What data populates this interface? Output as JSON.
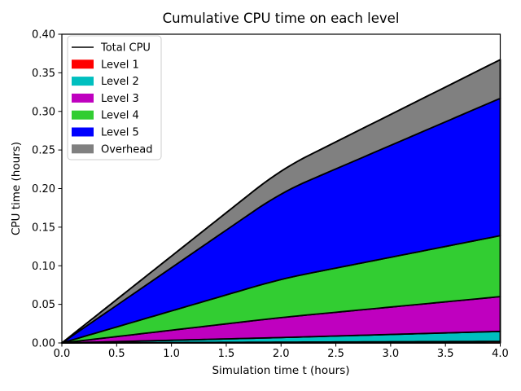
{
  "chart_data": {
    "type": "area",
    "title": "Cumulative CPU time on each level",
    "xlabel": "Simulation time t (hours)",
    "ylabel": "CPU time (hours)",
    "xlim": [
      0,
      4
    ],
    "ylim": [
      0,
      0.4
    ],
    "grid": false,
    "background_color": "#ffffff",
    "edge_color": "#000000",
    "xticks": {
      "values": [
        0.0,
        0.5,
        1.0,
        1.5,
        2.0,
        2.5,
        3.0,
        3.5,
        4.0
      ],
      "labels": [
        "0.0",
        "0.5",
        "1.0",
        "1.5",
        "2.0",
        "2.5",
        "3.0",
        "3.5",
        "4.0"
      ]
    },
    "yticks": {
      "values": [
        0.0,
        0.05,
        0.1,
        0.15,
        0.2,
        0.25,
        0.3,
        0.35,
        0.4
      ],
      "labels": [
        "0.00",
        "0.05",
        "0.10",
        "0.15",
        "0.20",
        "0.25",
        "0.30",
        "0.35",
        "0.40"
      ]
    },
    "x": [
      0,
      2,
      4
    ],
    "stack_series": [
      {
        "name": "Level 1",
        "color": "#ff0000",
        "values": [
          0,
          0.001,
          0.002
        ],
        "cumulative_top": [
          0,
          0.001,
          0.002
        ]
      },
      {
        "name": "Level 2",
        "color": "#00bfbf",
        "values": [
          0,
          0.006,
          0.013
        ],
        "cumulative_top": [
          0,
          0.007,
          0.015
        ]
      },
      {
        "name": "Level 3",
        "color": "#bf00bf",
        "values": [
          0,
          0.026,
          0.045
        ],
        "cumulative_top": [
          0,
          0.033,
          0.06
        ]
      },
      {
        "name": "Level 4",
        "color": "#32cd32",
        "values": [
          0,
          0.05,
          0.079
        ],
        "cumulative_top": [
          0,
          0.083,
          0.139
        ]
      },
      {
        "name": "Level 5",
        "color": "#0000ff",
        "values": [
          0,
          0.112,
          0.178
        ],
        "cumulative_top": [
          0,
          0.195,
          0.317
        ]
      },
      {
        "name": "Overhead",
        "color": "#808080",
        "values": [
          0,
          0.03,
          0.05
        ],
        "cumulative_top": [
          0,
          0.225,
          0.367
        ]
      }
    ],
    "total_line": {
      "name": "Total CPU",
      "color": "#000000",
      "values": [
        0,
        0.225,
        0.367
      ]
    },
    "legend": {
      "position": "upper left",
      "entries": [
        {
          "label": "Total CPU",
          "handle": "line",
          "color": "#000000"
        },
        {
          "label": "Level 1",
          "handle": "patch",
          "color": "#ff0000"
        },
        {
          "label": "Level 2",
          "handle": "patch",
          "color": "#00bfbf"
        },
        {
          "label": "Level 3",
          "handle": "patch",
          "color": "#bf00bf"
        },
        {
          "label": "Level 4",
          "handle": "patch",
          "color": "#32cd32"
        },
        {
          "label": "Level 5",
          "handle": "patch",
          "color": "#0000ff"
        },
        {
          "label": "Overhead",
          "handle": "patch",
          "color": "#808080"
        }
      ]
    }
  }
}
